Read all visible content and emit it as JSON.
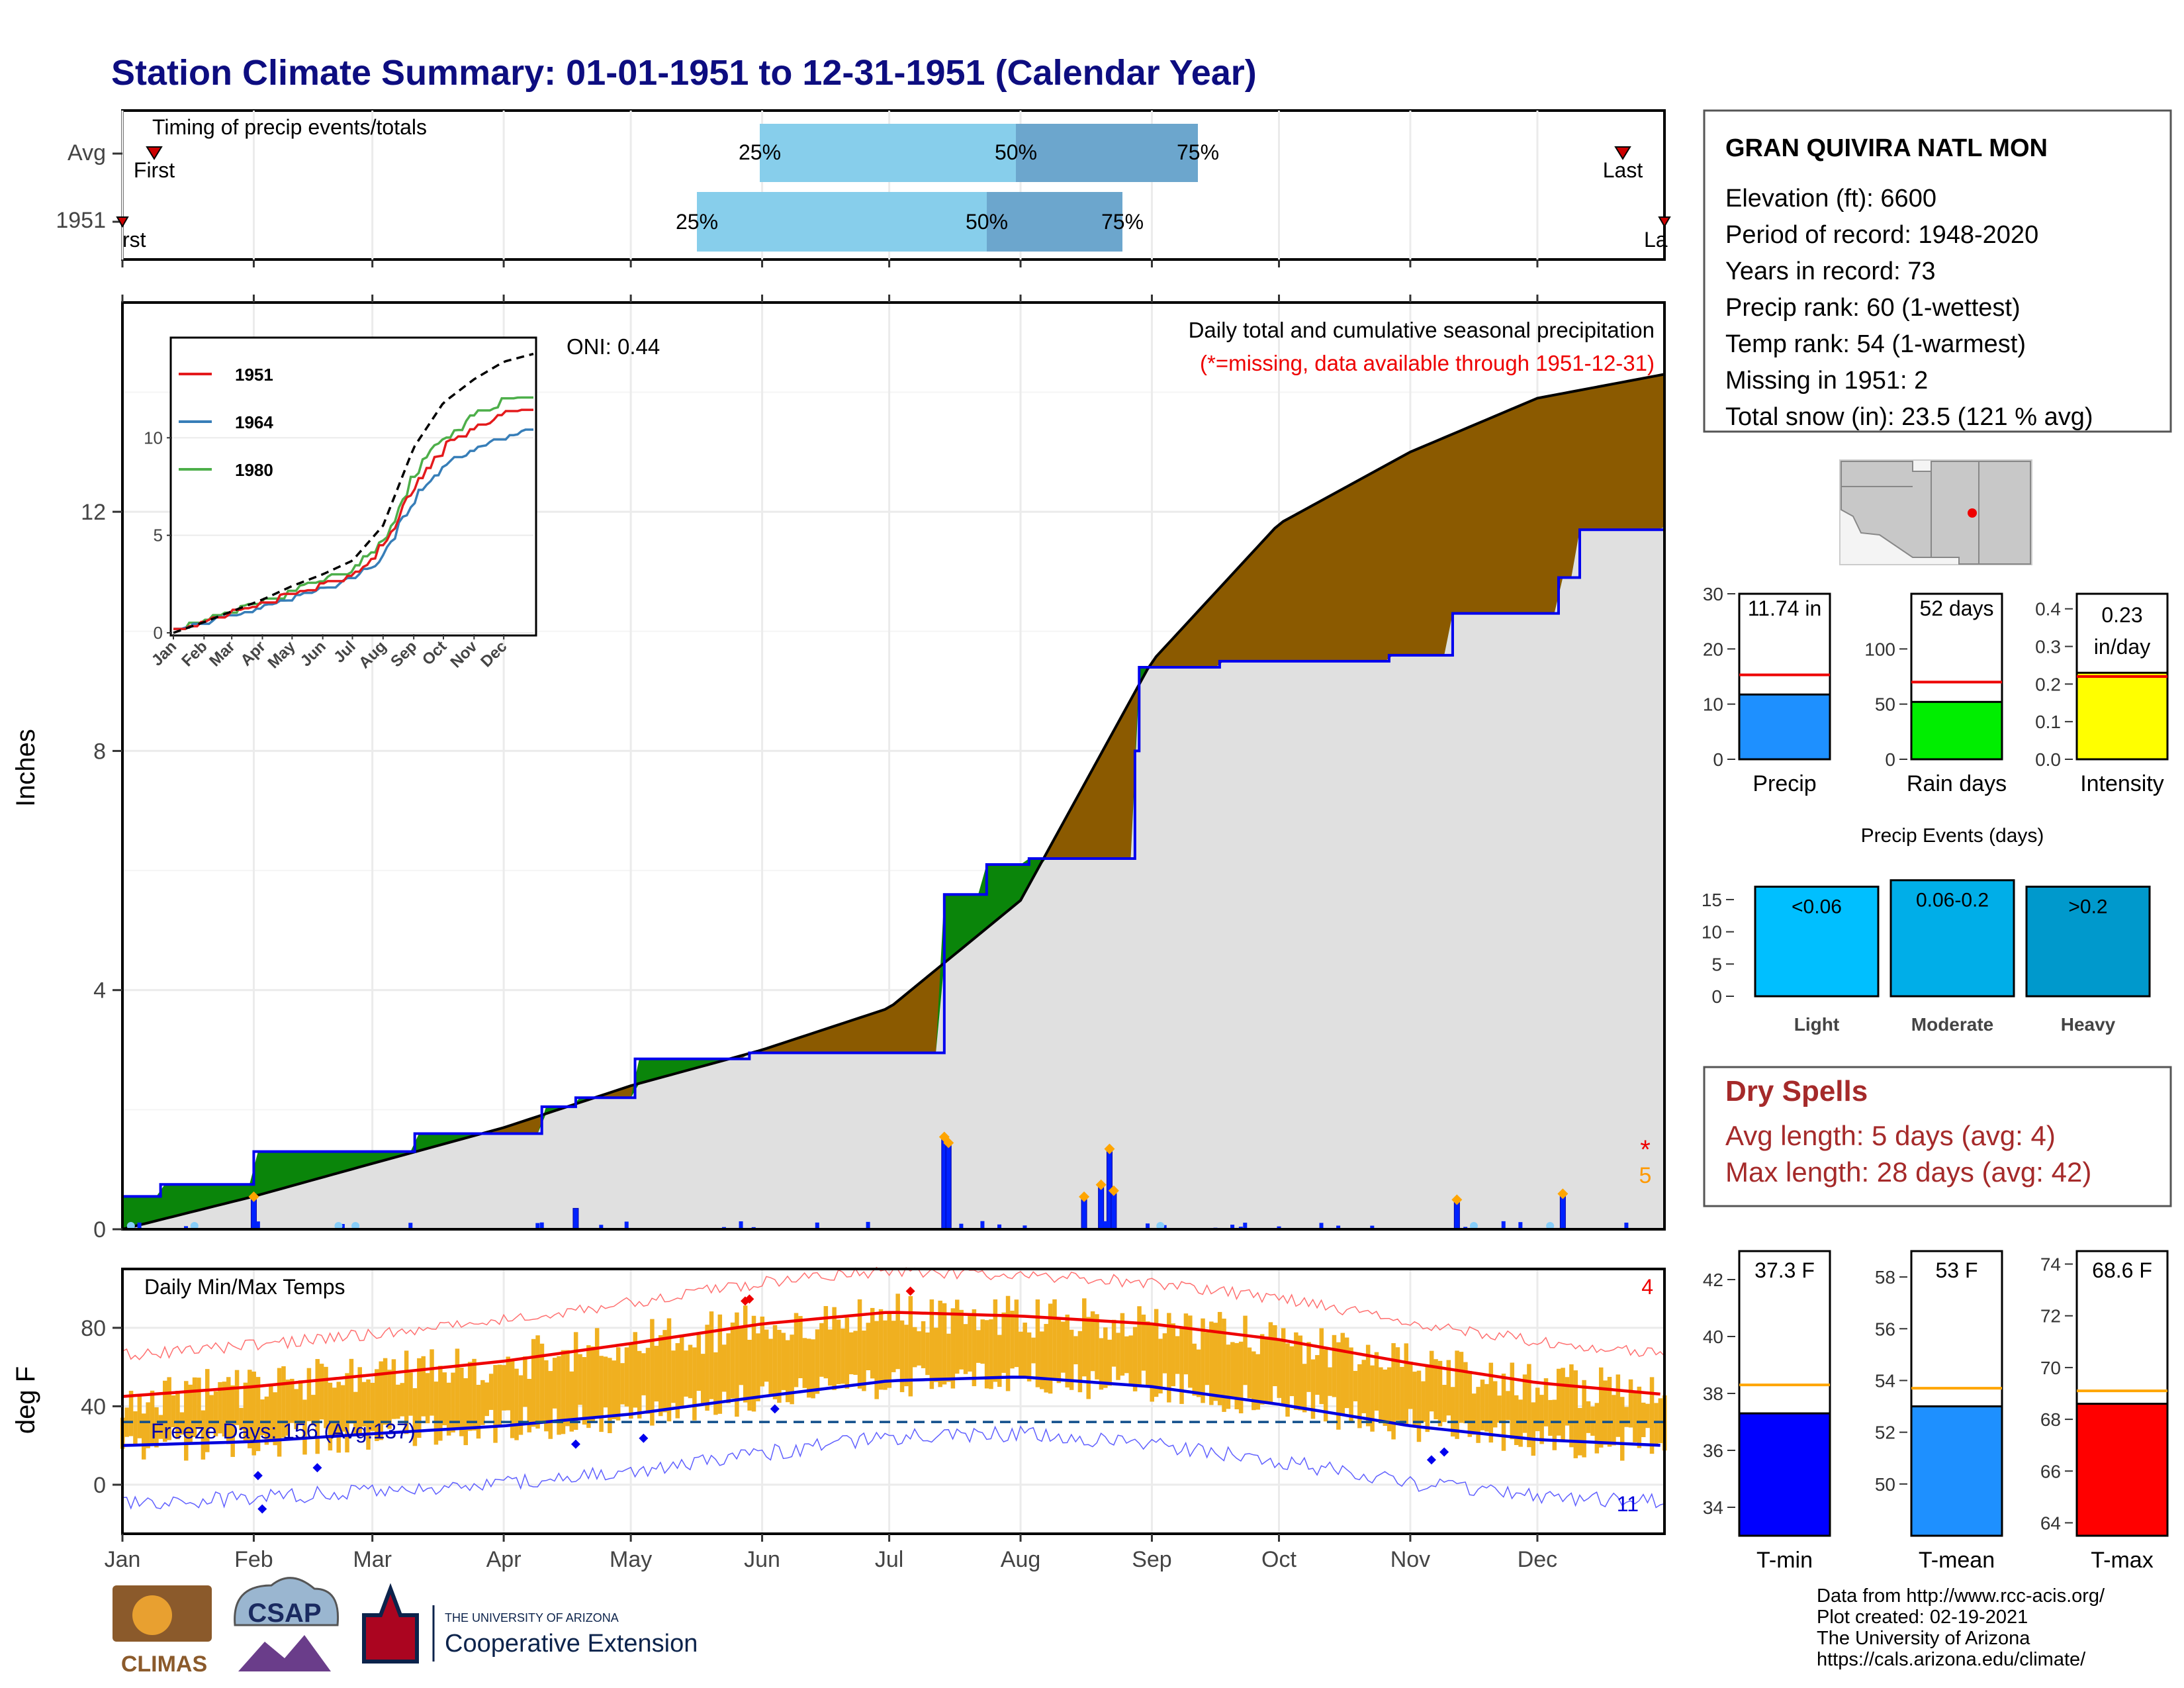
{
  "title": "Station Climate Summary: 01-01-1951 to 12-31-1951 (Calendar Year)",
  "colors": {
    "title": "#0d0d80",
    "precip_area": "#8b5a00",
    "green_area": "#0a850a",
    "normal_area": "#e0e0e0",
    "daily_bar": "#0022ff",
    "temp_bar": "#f0b020",
    "tmax_line": "#ee0000",
    "tmin_line": "#0000dd",
    "dry_spell_text": "#a52a2a"
  },
  "timing": {
    "title": "Timing of precip events/totals",
    "rows": [
      "Avg",
      "1951"
    ],
    "first_label": "First",
    "last_label": "Last",
    "avg_first_text": "First",
    "avg_last_text": "Last",
    "yr_first_text": "rst",
    "yr_last_text": "La",
    "pct_25": "25%",
    "pct_50": "50%",
    "pct_75": "75%"
  },
  "precip_panel": {
    "y_label": "Inches",
    "oni": "ONI: 0.44",
    "subtitle": "Daily total and cumulative seasonal precipitation",
    "missing_note": "(*=missing, data available through 1951-12-31)",
    "missing_count": "5",
    "y_ticks": [
      "0",
      "4",
      "8",
      "12"
    ]
  },
  "temp_panel": {
    "title": "Daily Min/Max Temps",
    "y_label": "deg F",
    "freeze_text": "Freeze Days: 156 (Avg:137)",
    "high_count": "4",
    "low_count": "11",
    "y_ticks": [
      "0",
      "40",
      "80"
    ]
  },
  "x_months": [
    "Jan",
    "Feb",
    "Mar",
    "Apr",
    "May",
    "Jun",
    "Jul",
    "Aug",
    "Sep",
    "Oct",
    "Nov",
    "Dec"
  ],
  "station": {
    "name": "GRAN QUIVIRA NATL MON",
    "lines": [
      "Elevation (ft): 6600",
      "Period of record: 1948-2020",
      "Years in record: 73",
      "Precip rank: 60 (1-wettest)",
      "Temp rank: 54 (1-warmest)",
      "Missing in 1951: 2",
      "Total snow (in): 23.5 (121 % avg)"
    ]
  },
  "summary_bars": {
    "precip": {
      "label": "Precip",
      "value_text": "11.74 in",
      "value": 11.74,
      "avg": 15.3,
      "ymax": 30,
      "ticks": [
        "0",
        "10",
        "20",
        "30"
      ],
      "color": "#1e90ff"
    },
    "rain_days": {
      "label": "Rain days",
      "value_text": "52 days",
      "value": 52,
      "avg": 70,
      "ymax": 150,
      "ticks": [
        "0",
        "50",
        "100"
      ],
      "color": "#00ee00"
    },
    "intensity": {
      "label": "Intensity",
      "value_text_1": "0.23",
      "value_text_2": "in/day",
      "value": 0.23,
      "avg": 0.22,
      "ymax": 0.44,
      "ticks": [
        "0.0",
        "0.1",
        "0.2",
        "0.3",
        "0.4"
      ],
      "color": "#ffff00"
    }
  },
  "precip_events": {
    "title": "Precip Events (days)",
    "ticks": [
      "0",
      "5",
      "10",
      "15"
    ],
    "bars": [
      {
        "label": "Light",
        "range": "<0.06",
        "value": 17,
        "color": "#00bfff"
      },
      {
        "label": "Moderate",
        "range": "0.06-0.2",
        "value": 18,
        "color": "#00aee8"
      },
      {
        "label": "Heavy",
        "range": ">0.2",
        "value": 17,
        "color": "#0099cc"
      }
    ]
  },
  "dry_spells": {
    "title": "Dry Spells",
    "avg": "Avg length: 5 days (avg: 4)",
    "max": "Max length: 28 days (avg: 42)"
  },
  "temp_bars": {
    "tmin": {
      "label": "T-min",
      "value_text": "37.3 F",
      "value": 37.3,
      "avg": 38.3,
      "ymin": 33,
      "ymax": 43,
      "ticks": [
        "34",
        "36",
        "38",
        "40",
        "42"
      ],
      "color": "#0000ff"
    },
    "tmean": {
      "label": "T-mean",
      "value_text": "53 F",
      "value": 53,
      "avg": 53.7,
      "ymin": 48,
      "ymax": 59,
      "ticks": [
        "50",
        "52",
        "54",
        "56",
        "58"
      ],
      "color": "#1e90ff"
    },
    "tmax": {
      "label": "T-max",
      "value_text": "68.6 F",
      "value": 68.6,
      "avg": 69.1,
      "ymin": 63.5,
      "ymax": 74.5,
      "ticks": [
        "64",
        "66",
        "68",
        "70",
        "72",
        "74"
      ],
      "color": "#ff0000"
    }
  },
  "footer": {
    "lines": [
      "Data from http://www.rcc-acis.org/",
      "Plot created: 02-19-2021",
      "The University of Arizona",
      "https://cals.arizona.edu/climate/"
    ],
    "climas_logo": "CLIMAS",
    "csap_logo": "CSAP",
    "ua_line1": "THE UNIVERSITY OF ARIZONA",
    "ua_line2": "Cooperative Extension"
  },
  "chart_data": [
    {
      "type": "area",
      "name": "cumulative",
      "title": "Daily total and cumulative seasonal precipitation",
      "ylabel": "Inches",
      "ylim": [
        0,
        15.5
      ],
      "x_label_unit": "day of year",
      "normal_cumulative": {
        "x": [
          1,
          32,
          60,
          91,
          121,
          152,
          182,
          213,
          244,
          274,
          305,
          335,
          365
        ],
        "y": [
          0.0,
          0.55,
          1.1,
          1.7,
          2.4,
          3.0,
          3.7,
          5.5,
          9.5,
          11.8,
          13.0,
          13.9,
          14.3
        ]
      },
      "observed_1951": {
        "x": [
          1,
          10,
          32,
          70,
          100,
          108,
          122,
          149,
          180,
          195,
          205,
          215,
          230,
          240,
          241,
          260,
          300,
          315,
          340,
          345,
          365
        ],
        "y": [
          0.55,
          0.75,
          1.3,
          1.6,
          2.05,
          2.2,
          2.85,
          2.95,
          2.95,
          5.6,
          6.1,
          6.2,
          6.2,
          8.0,
          9.4,
          9.5,
          9.6,
          10.3,
          10.9,
          11.7,
          11.74
        ]
      },
      "daily_precip_large": {
        "x": [
          32,
          108,
          195,
          196,
          228,
          232,
          234,
          235,
          316,
          341
        ],
        "y": [
          0.5,
          0.35,
          1.5,
          1.4,
          0.5,
          0.7,
          1.3,
          0.6,
          0.45,
          0.55
        ]
      }
    },
    {
      "type": "line",
      "name": "inset_cumulative",
      "series": [
        {
          "name": "1951"
        },
        {
          "name": "1964"
        },
        {
          "name": "1980"
        }
      ],
      "x": [
        "Jan",
        "Feb",
        "Mar",
        "Apr",
        "May",
        "Jun",
        "Jul",
        "Aug",
        "Sep",
        "Oct",
        "Nov",
        "Dec"
      ],
      "ylim": [
        0,
        15
      ]
    },
    {
      "type": "line",
      "name": "temps",
      "title": "Daily Min/Max Temps",
      "ylabel": "deg F",
      "ylim": [
        -25,
        110
      ],
      "tmax_smooth": {
        "x": [
          1,
          32,
          60,
          91,
          121,
          152,
          182,
          213,
          244,
          274,
          305,
          335,
          365
        ],
        "y": [
          45,
          50,
          56,
          63,
          72,
          82,
          88,
          86,
          82,
          74,
          62,
          52,
          46
        ]
      },
      "tmin_smooth": {
        "x": [
          1,
          32,
          60,
          91,
          121,
          152,
          182,
          213,
          244,
          274,
          305,
          335,
          365
        ],
        "y": [
          20,
          22,
          26,
          30,
          36,
          45,
          53,
          55,
          50,
          41,
          30,
          23,
          20
        ]
      },
      "freeze_line": 32
    }
  ]
}
